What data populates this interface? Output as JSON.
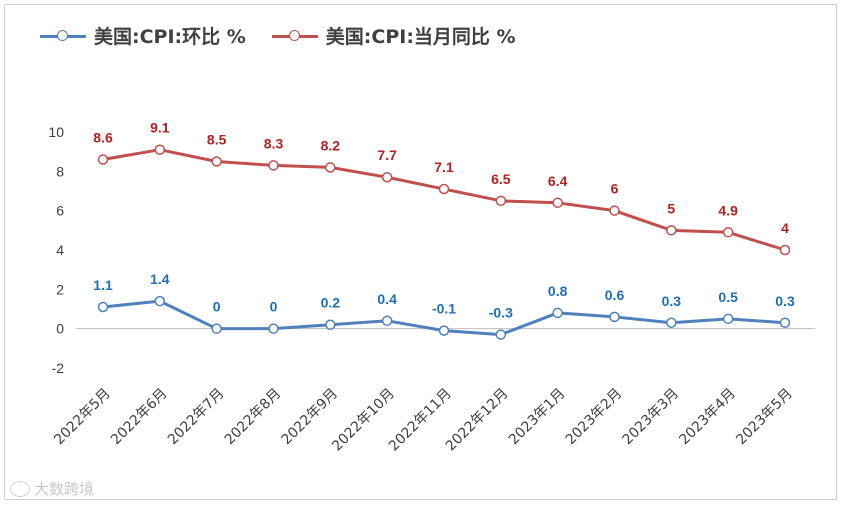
{
  "chart_data": {
    "type": "line",
    "title": "",
    "categories": [
      "2022年5月",
      "2022年6月",
      "2022年7月",
      "2022年8月",
      "2022年9月",
      "2022年10月",
      "2022年11月",
      "2022年12月",
      "2023年1月",
      "2023年2月",
      "2023年3月",
      "2023年4月",
      "2023年5月"
    ],
    "series": [
      {
        "name": "美国:CPI:环比 %",
        "color": "#4f81bd",
        "label_color": "#1f6fb5",
        "values": [
          1.1,
          1.4,
          0,
          0,
          0.2,
          0.4,
          -0.1,
          -0.3,
          0.8,
          0.6,
          0.3,
          0.5,
          0.3
        ]
      },
      {
        "name": "美国:CPI:当月同比 %",
        "color": "#c0504d",
        "label_color": "#b22222",
        "values": [
          8.6,
          9.1,
          8.5,
          8.3,
          8.2,
          7.7,
          7.1,
          6.5,
          6.4,
          6,
          5,
          4.9,
          4
        ]
      }
    ],
    "ylim": [
      -2,
      10
    ],
    "yticks": [
      "-2",
      "0",
      "2",
      "4",
      "6",
      "8",
      "10"
    ],
    "xlabel": "",
    "ylabel": "",
    "grid": false,
    "legend": "top-left"
  },
  "watermark": "大数跨境"
}
